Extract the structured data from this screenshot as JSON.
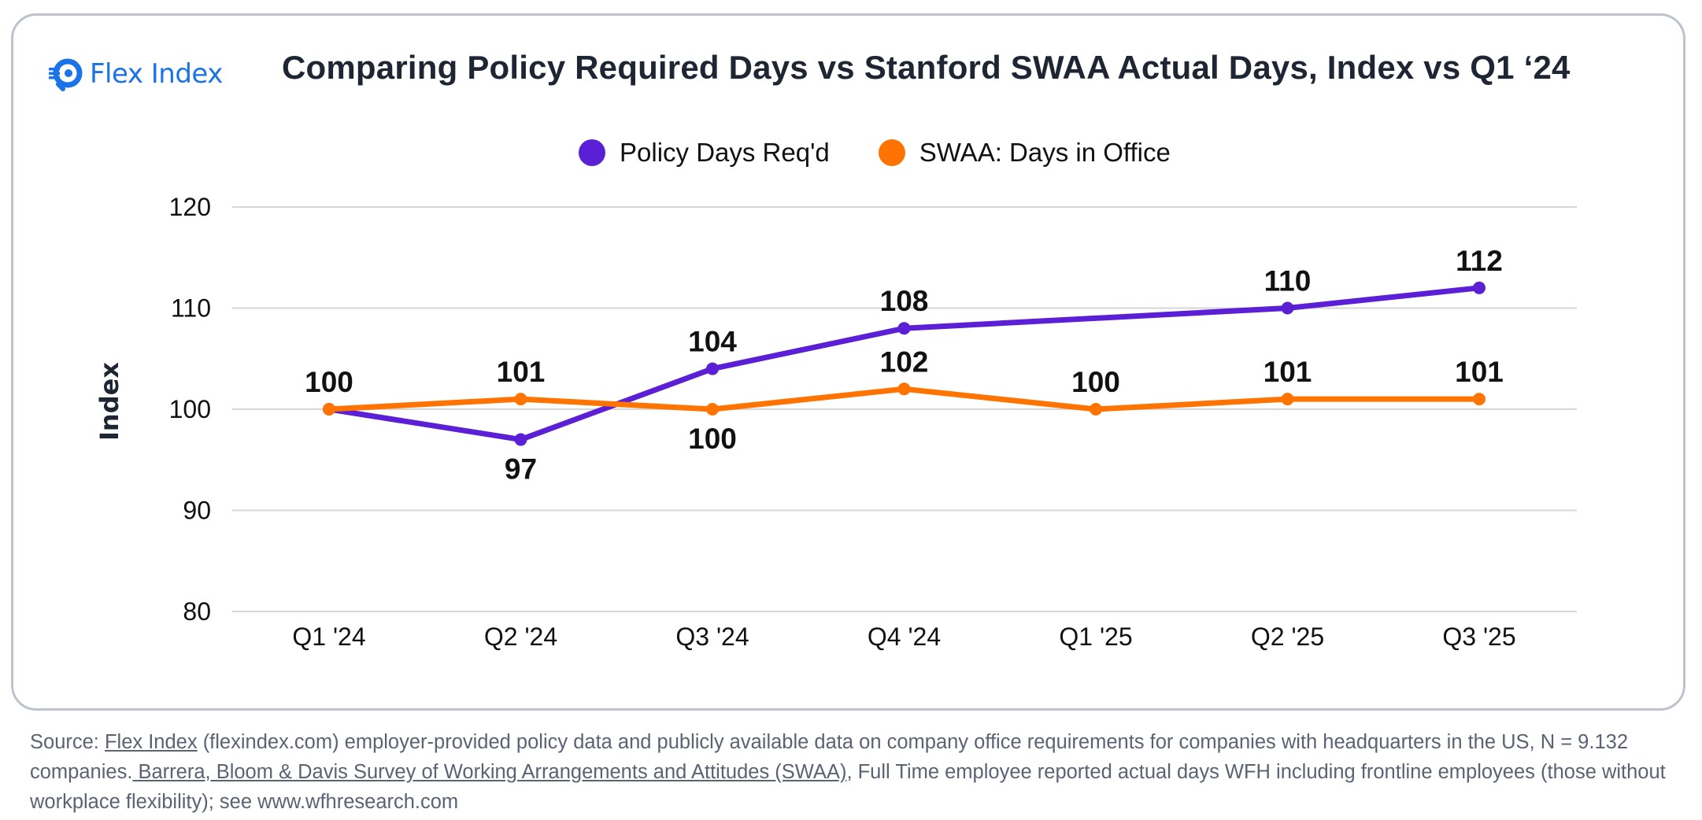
{
  "brand": {
    "name": "Flex Index",
    "icon": "flex-index-logo-icon",
    "color": "#1a73e8"
  },
  "title": "Comparing Policy Required Days vs Stanford SWAA Actual Days, Index vs Q1 ‘24",
  "legend": [
    {
      "label": "Policy Days Req'd",
      "color": "#5b1fd6"
    },
    {
      "label": "SWAA: Days in Office",
      "color": "#ff7300"
    }
  ],
  "chart_data": {
    "type": "line",
    "title": "Comparing Policy Required Days vs Stanford SWAA Actual Days, Index vs Q1 ‘24",
    "xlabel": "",
    "ylabel": "Index",
    "categories": [
      "Q1 '24",
      "Q2 '24",
      "Q3 '24",
      "Q4 '24",
      "Q1 '25",
      "Q2 '25",
      "Q3 '25"
    ],
    "series": [
      {
        "name": "Policy Days Req'd",
        "color": "#5b1fd6",
        "values": [
          100,
          97,
          104,
          108,
          null,
          110,
          112
        ],
        "labels": [
          null,
          "97",
          "104",
          "108",
          null,
          "110",
          "112"
        ],
        "label_position": [
          "above",
          "below",
          "above",
          "above",
          null,
          "above",
          "above"
        ]
      },
      {
        "name": "SWAA: Days in Office",
        "color": "#ff7300",
        "values": [
          100,
          101,
          100,
          102,
          100,
          101,
          101
        ],
        "labels": [
          "100",
          "101",
          "100",
          "102",
          "100",
          "101",
          "101"
        ],
        "label_position": [
          "above",
          "above",
          "below",
          "above",
          "above",
          "above",
          "above"
        ]
      }
    ],
    "ylim": [
      80,
      120
    ],
    "yticks": [
      80,
      90,
      100,
      110,
      120
    ],
    "grid": true,
    "legend_position": "top-center",
    "span_gaps": true
  },
  "footer": {
    "source_prefix": "Source: ",
    "link1": "Flex Index",
    "text1": " (flexindex.com) employer-provided policy data and publicly available data on company office requirements for companies with headquarters in the US, N = 9.132 companies.",
    "link2": " Barrera, Bloom & Davis Survey of Working Arrangements and Attitudes (SWAA)",
    "text2": ", Full Time employee reported actual days WFH including frontline employees (those without workplace flexibility); see www.wfhresearch.com"
  }
}
